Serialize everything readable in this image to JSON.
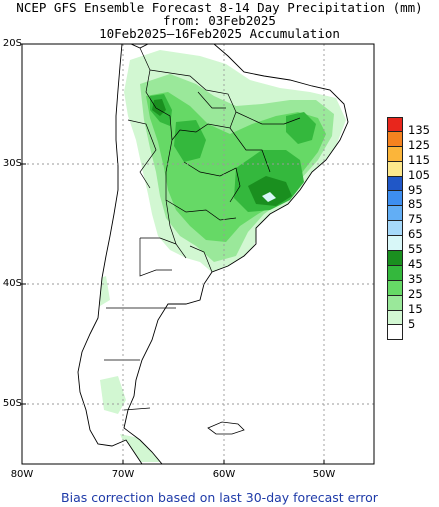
{
  "title": {
    "line1": "NCEP GFS Ensemble Forecast 8-14 Day Precipitation (mm)",
    "line2": "from: 03Feb2025",
    "line3": "10Feb2025–16Feb2025 Accumulation"
  },
  "axes": {
    "lat_labels": [
      "20S",
      "30S",
      "40S",
      "50S"
    ],
    "lon_labels": [
      "80W",
      "70W",
      "60W",
      "50W"
    ]
  },
  "legend": {
    "levels": [
      "135",
      "125",
      "115",
      "105",
      "95",
      "85",
      "75",
      "65",
      "55",
      "45",
      "35",
      "25",
      "15",
      "5"
    ],
    "colors": [
      "#e8261c",
      "#f5821f",
      "#fbb53a",
      "#fde88c",
      "#2057c7",
      "#3d8ef0",
      "#62aef5",
      "#a6d9fa",
      "#d8f7f8",
      "#1a8f1f",
      "#34b83d",
      "#66d966",
      "#9ae89a",
      "#d2f7d2",
      "#ffffff"
    ]
  },
  "footer": "Bias correction based on last 30-day forecast error",
  "colors": {
    "land_border": "#000000",
    "grid": "#9a9a9a",
    "footer_text": "#1e3aa8"
  }
}
